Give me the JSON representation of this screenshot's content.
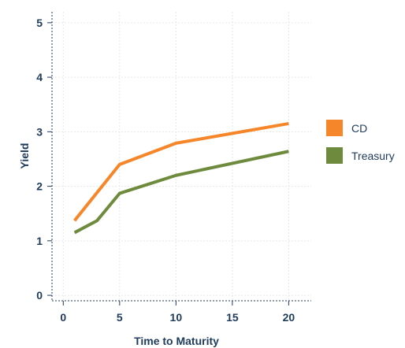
{
  "chart_data": {
    "type": "line",
    "xlabel": "Time to Maturity",
    "ylabel": "Yield",
    "xlim": [
      -1,
      22
    ],
    "ylim": [
      -0.1,
      5.2
    ],
    "x_ticks": [
      0,
      5,
      10,
      15,
      20
    ],
    "y_ticks": [
      0,
      1,
      2,
      3,
      4,
      5
    ],
    "grid": true,
    "legend_position": "right",
    "series": [
      {
        "name": "CD",
        "color": "#f5862a",
        "x": [
          1,
          5,
          10,
          20
        ],
        "values": [
          1.37,
          2.4,
          2.79,
          3.15
        ]
      },
      {
        "name": "Treasury",
        "color": "#6e8b3d",
        "x": [
          1,
          3,
          5,
          10,
          20
        ],
        "values": [
          1.15,
          1.37,
          1.87,
          2.2,
          2.64
        ]
      }
    ]
  }
}
